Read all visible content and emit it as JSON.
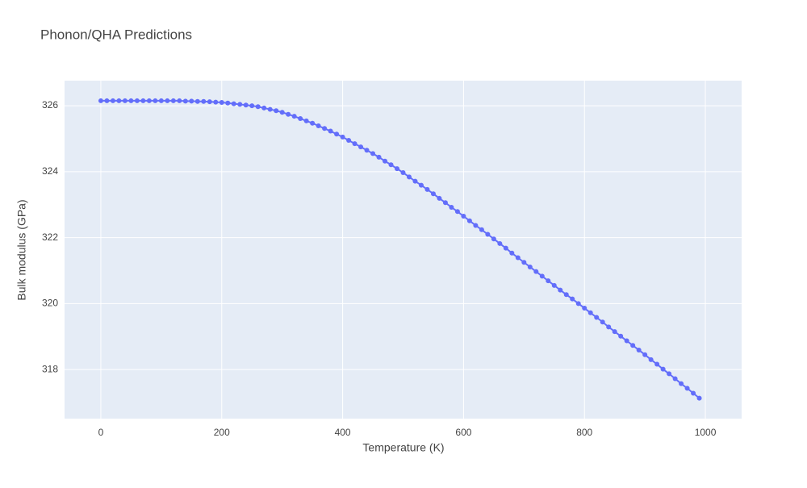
{
  "chart_data": {
    "type": "line",
    "title": "Phonon/QHA Predictions",
    "x_label": "Temperature (K)",
    "y_label": "Bulk modulus (GPa)",
    "x": [
      0,
      10,
      20,
      30,
      40,
      50,
      60,
      70,
      80,
      90,
      100,
      110,
      120,
      130,
      140,
      150,
      160,
      170,
      180,
      190,
      200,
      210,
      220,
      230,
      240,
      250,
      260,
      270,
      280,
      290,
      300,
      310,
      320,
      330,
      340,
      350,
      360,
      370,
      380,
      390,
      400,
      410,
      420,
      430,
      440,
      450,
      460,
      470,
      480,
      490,
      500,
      510,
      520,
      530,
      540,
      550,
      560,
      570,
      580,
      590,
      600,
      610,
      620,
      630,
      640,
      650,
      660,
      670,
      680,
      690,
      700,
      710,
      720,
      730,
      740,
      750,
      760,
      770,
      780,
      790,
      800,
      810,
      820,
      830,
      840,
      850,
      860,
      870,
      880,
      890,
      900,
      910,
      920,
      930,
      940,
      950,
      960,
      970,
      980,
      990
    ],
    "series": [
      {
        "name": "Bulk modulus",
        "color": "#636efa",
        "values": [
          326.15,
          326.15,
          326.15,
          326.15,
          326.15,
          326.15,
          326.15,
          326.15,
          326.15,
          326.15,
          326.15,
          326.15,
          326.15,
          326.15,
          326.14,
          326.14,
          326.13,
          326.13,
          326.12,
          326.11,
          326.1,
          326.08,
          326.06,
          326.04,
          326.02,
          326.0,
          325.97,
          325.93,
          325.89,
          325.85,
          325.8,
          325.74,
          325.68,
          325.61,
          325.54,
          325.47,
          325.39,
          325.31,
          325.23,
          325.14,
          325.05,
          324.95,
          324.85,
          324.75,
          324.65,
          324.55,
          324.44,
          324.32,
          324.21,
          324.09,
          323.97,
          323.84,
          323.71,
          323.59,
          323.46,
          323.33,
          323.19,
          323.06,
          322.92,
          322.79,
          322.65,
          322.51,
          322.37,
          322.24,
          322.1,
          321.96,
          321.82,
          321.68,
          321.53,
          321.39,
          321.25,
          321.11,
          320.97,
          320.83,
          320.69,
          320.55,
          320.41,
          320.27,
          320.14,
          320.0,
          319.86,
          319.72,
          319.58,
          319.44,
          319.29,
          319.15,
          319.01,
          318.87,
          318.73,
          318.59,
          318.45,
          318.3,
          318.16,
          318.01,
          317.87,
          317.72,
          317.57,
          317.43,
          317.28,
          317.13
        ]
      }
    ],
    "xlim": [
      -60,
      1060
    ],
    "xticks": [
      0,
      200,
      400,
      600,
      800,
      1000
    ],
    "ylim": [
      316.51,
      326.76
    ],
    "yticks": [
      318,
      320,
      322,
      324,
      326
    ],
    "grid": true,
    "markers": true
  }
}
